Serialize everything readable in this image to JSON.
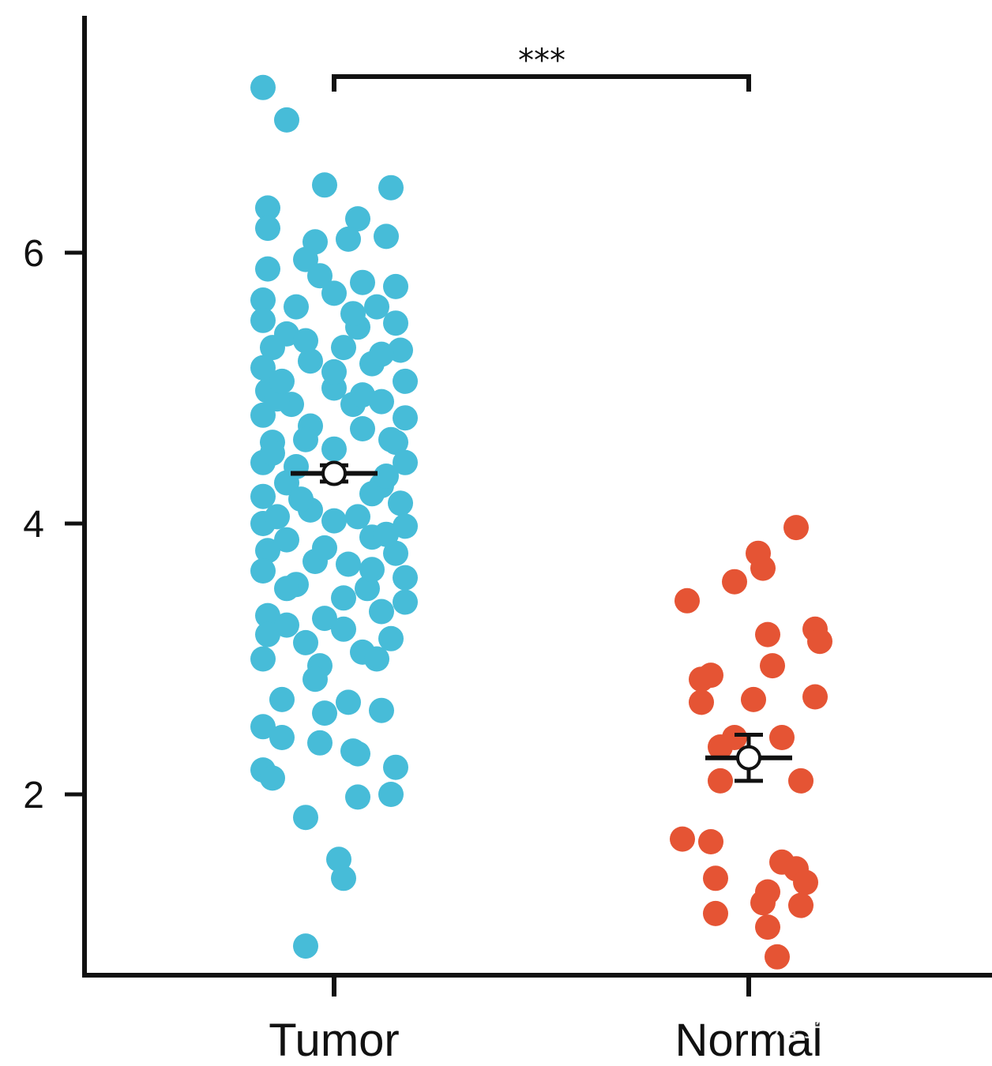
{
  "chart_data": {
    "type": "scatter",
    "title": "",
    "xlabel": "",
    "ylabel": "",
    "ylim": [
      0.7,
      7.7
    ],
    "y_ticks": [
      "2",
      "4",
      "6"
    ],
    "y_tick_values": [
      2,
      4,
      6
    ],
    "categories": [
      "Tumor",
      "Normal"
    ],
    "significance": "***",
    "colors": {
      "Tumor": "#47bcd8",
      "Normal": "#e55434",
      "axis": "#111111"
    },
    "series": [
      {
        "category": "Tumor",
        "mean": 4.37,
        "ci": [
          4.31,
          4.43
        ],
        "points": [
          [
            -0.15,
            7.22
          ],
          [
            -0.1,
            6.98
          ],
          [
            -0.02,
            6.5
          ],
          [
            0.12,
            6.48
          ],
          [
            -0.14,
            6.33
          ],
          [
            0.05,
            6.25
          ],
          [
            -0.14,
            6.18
          ],
          [
            -0.04,
            6.08
          ],
          [
            0.11,
            6.12
          ],
          [
            0.03,
            6.1
          ],
          [
            -0.06,
            5.95
          ],
          [
            -0.14,
            5.88
          ],
          [
            -0.03,
            5.83
          ],
          [
            0.06,
            5.78
          ],
          [
            0.13,
            5.75
          ],
          [
            -0.15,
            5.65
          ],
          [
            -0.08,
            5.6
          ],
          [
            0.0,
            5.7
          ],
          [
            0.09,
            5.6
          ],
          [
            -0.15,
            5.5
          ],
          [
            0.13,
            5.48
          ],
          [
            -0.1,
            5.4
          ],
          [
            0.05,
            5.45
          ],
          [
            -0.13,
            5.3
          ],
          [
            0.14,
            5.28
          ],
          [
            0.02,
            5.3
          ],
          [
            -0.15,
            5.15
          ],
          [
            -0.05,
            5.2
          ],
          [
            0.08,
            5.18
          ],
          [
            0.15,
            5.05
          ],
          [
            -0.14,
            4.98
          ],
          [
            0.0,
            5.0
          ],
          [
            -0.09,
            4.88
          ],
          [
            0.1,
            4.9
          ],
          [
            -0.15,
            4.8
          ],
          [
            0.15,
            4.78
          ],
          [
            -0.05,
            4.72
          ],
          [
            0.06,
            4.7
          ],
          [
            -0.13,
            4.6
          ],
          [
            0.13,
            4.6
          ],
          [
            0.0,
            4.55
          ],
          [
            -0.15,
            4.45
          ],
          [
            0.15,
            4.45
          ],
          [
            -0.1,
            4.3
          ],
          [
            0.1,
            4.28
          ],
          [
            -0.15,
            4.2
          ],
          [
            0.14,
            4.15
          ],
          [
            -0.05,
            4.1
          ],
          [
            0.05,
            4.05
          ],
          [
            -0.15,
            4.0
          ],
          [
            0.15,
            3.98
          ],
          [
            -0.1,
            3.88
          ],
          [
            0.08,
            3.9
          ],
          [
            -0.14,
            3.8
          ],
          [
            0.13,
            3.78
          ],
          [
            -0.04,
            3.72
          ],
          [
            0.03,
            3.7
          ],
          [
            -0.15,
            3.65
          ],
          [
            0.15,
            3.6
          ],
          [
            -0.08,
            3.55
          ],
          [
            0.07,
            3.52
          ],
          [
            0.15,
            3.42
          ],
          [
            -0.14,
            3.32
          ],
          [
            0.1,
            3.35
          ],
          [
            -0.02,
            3.3
          ],
          [
            -0.1,
            3.25
          ],
          [
            0.02,
            3.22
          ],
          [
            -0.14,
            3.18
          ],
          [
            0.12,
            3.15
          ],
          [
            -0.06,
            3.12
          ],
          [
            0.06,
            3.05
          ],
          [
            -0.15,
            3.0
          ],
          [
            0.09,
            3.0
          ],
          [
            -0.03,
            2.95
          ],
          [
            -0.04,
            2.85
          ],
          [
            -0.11,
            2.7
          ],
          [
            0.03,
            2.68
          ],
          [
            -0.02,
            2.6
          ],
          [
            0.1,
            2.62
          ],
          [
            -0.15,
            2.5
          ],
          [
            -0.11,
            2.42
          ],
          [
            -0.03,
            2.38
          ],
          [
            0.04,
            2.32
          ],
          [
            0.05,
            2.3
          ],
          [
            -0.15,
            2.18
          ],
          [
            0.13,
            2.2
          ],
          [
            -0.13,
            2.12
          ],
          [
            0.05,
            1.98
          ],
          [
            0.12,
            2.0
          ],
          [
            -0.06,
            1.83
          ],
          [
            0.01,
            1.52
          ],
          [
            0.02,
            1.38
          ],
          [
            -0.06,
            0.88
          ],
          [
            -0.12,
            4.92
          ],
          [
            0.12,
            4.62
          ],
          [
            -0.08,
            4.42
          ],
          [
            0.08,
            4.22
          ],
          [
            -0.12,
            4.05
          ],
          [
            0.11,
            3.92
          ],
          [
            -0.06,
            4.62
          ],
          [
            0.04,
            4.88
          ],
          [
            0.0,
            5.12
          ],
          [
            -0.11,
            5.05
          ],
          [
            0.1,
            5.25
          ],
          [
            -0.06,
            5.35
          ],
          [
            0.04,
            5.55
          ],
          [
            0.0,
            4.02
          ],
          [
            -0.02,
            3.82
          ],
          [
            0.08,
            3.66
          ],
          [
            -0.1,
            3.52
          ],
          [
            0.02,
            3.45
          ],
          [
            0.11,
            4.35
          ],
          [
            -0.13,
            4.52
          ],
          [
            0.06,
            4.95
          ],
          [
            -0.07,
            4.18
          ]
        ]
      },
      {
        "category": "Normal",
        "mean": 2.27,
        "ci": [
          2.1,
          2.44
        ],
        "points": [
          [
            0.1,
            3.97
          ],
          [
            0.02,
            3.78
          ],
          [
            0.03,
            3.67
          ],
          [
            -0.03,
            3.57
          ],
          [
            -0.13,
            3.43
          ],
          [
            0.14,
            3.22
          ],
          [
            0.04,
            3.18
          ],
          [
            0.15,
            3.13
          ],
          [
            0.05,
            2.95
          ],
          [
            -0.08,
            2.88
          ],
          [
            -0.1,
            2.85
          ],
          [
            0.14,
            2.72
          ],
          [
            0.01,
            2.7
          ],
          [
            -0.1,
            2.68
          ],
          [
            -0.03,
            2.42
          ],
          [
            0.07,
            2.42
          ],
          [
            -0.06,
            2.35
          ],
          [
            -0.06,
            2.1
          ],
          [
            0.11,
            2.1
          ],
          [
            -0.14,
            1.67
          ],
          [
            -0.08,
            1.65
          ],
          [
            0.07,
            1.5
          ],
          [
            0.1,
            1.45
          ],
          [
            -0.07,
            1.38
          ],
          [
            0.12,
            1.35
          ],
          [
            0.04,
            1.28
          ],
          [
            0.03,
            1.2
          ],
          [
            0.11,
            1.18
          ],
          [
            -0.07,
            1.12
          ],
          [
            0.04,
            1.02
          ],
          [
            0.06,
            0.8
          ]
        ]
      }
    ]
  },
  "watermark": "知乎 @生信分析"
}
